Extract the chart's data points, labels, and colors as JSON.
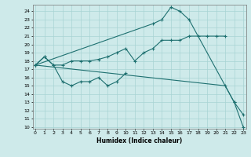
{
  "xlabel": "Humidex (Indice chaleur)",
  "bg_color": "#ceeaea",
  "grid_color": "#a8d4d4",
  "line_color": "#1e7070",
  "x_ticks": [
    0,
    1,
    2,
    3,
    4,
    5,
    6,
    7,
    8,
    9,
    10,
    11,
    12,
    13,
    14,
    15,
    16,
    17,
    18,
    19,
    20,
    21,
    22,
    23
  ],
  "y_ticks": [
    10,
    11,
    12,
    13,
    14,
    15,
    16,
    17,
    18,
    19,
    20,
    21,
    22,
    23,
    24
  ],
  "xlim": [
    -0.3,
    23.3
  ],
  "ylim": [
    9.8,
    24.8
  ],
  "series": [
    {
      "x": [
        0,
        1,
        2,
        3,
        4,
        5,
        6,
        7,
        8,
        9,
        10,
        11,
        12,
        13,
        14,
        15,
        16,
        17,
        18,
        19,
        20,
        21
      ],
      "y": [
        17.5,
        18.5,
        17.5,
        17.5,
        18.0,
        18.0,
        18.0,
        18.2,
        18.5,
        19.0,
        19.5,
        18.0,
        19.0,
        19.5,
        20.5,
        20.5,
        20.5,
        21.0,
        21.0,
        21.0,
        21.0,
        21.0
      ]
    },
    {
      "x": [
        0,
        1,
        2,
        3,
        4,
        5,
        6,
        7,
        8,
        9,
        10
      ],
      "y": [
        17.5,
        18.5,
        17.5,
        15.5,
        15.0,
        15.5,
        15.5,
        16.0,
        15.0,
        15.5,
        16.5
      ]
    },
    {
      "x": [
        0,
        13,
        14,
        15,
        16,
        17,
        22,
        23
      ],
      "y": [
        17.5,
        22.5,
        23.0,
        24.5,
        24.0,
        23.0,
        13.0,
        11.5
      ]
    },
    {
      "x": [
        0,
        21,
        22,
        23
      ],
      "y": [
        17.5,
        15.0,
        13.0,
        10.0
      ]
    }
  ]
}
